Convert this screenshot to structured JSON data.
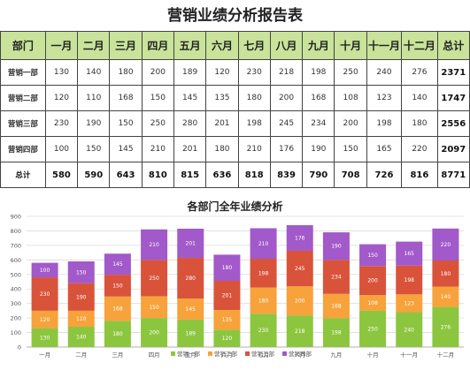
{
  "title": "营销业绩分析报告表",
  "table": {
    "headers": [
      "部门",
      "一月",
      "二月",
      "三月",
      "四月",
      "五月",
      "六月",
      "七月",
      "八月",
      "九月",
      "十月",
      "十一月",
      "十二月",
      "总计"
    ],
    "rows": [
      {
        "dept": "营销一部",
        "values": [
          "130",
          "140",
          "180",
          "200",
          "189",
          "120",
          "230",
          "218",
          "198",
          "250",
          "240",
          "276"
        ],
        "total": "2371"
      },
      {
        "dept": "营销二部",
        "values": [
          "120",
          "110",
          "168",
          "150",
          "145",
          "135",
          "180",
          "200",
          "168",
          "108",
          "123",
          "140"
        ],
        "total": "1747"
      },
      {
        "dept": "营销三部",
        "values": [
          "230",
          "190",
          "150",
          "250",
          "280",
          "201",
          "198",
          "245",
          "234",
          "200",
          "198",
          "180"
        ],
        "total": "2556"
      },
      {
        "dept": "营销四部",
        "values": [
          "100",
          "150",
          "145",
          "210",
          "201",
          "180",
          "210",
          "176",
          "190",
          "150",
          "165",
          "220"
        ],
        "total": "2097"
      }
    ],
    "sum_row": {
      "label": "总计",
      "values": [
        "580",
        "590",
        "643",
        "810",
        "815",
        "636",
        "818",
        "839",
        "790",
        "708",
        "726",
        "816"
      ],
      "total": "8771"
    }
  },
  "chart_data": {
    "type": "bar",
    "stacked": true,
    "title": "各部门全年业绩分析",
    "categories": [
      "一月",
      "二月",
      "三月",
      "四月",
      "五月",
      "六月",
      "七月",
      "八月",
      "九月",
      "十月",
      "十一月",
      "十二月"
    ],
    "series": [
      {
        "name": "营销一部",
        "color": "#8cc63f",
        "values": [
          130,
          140,
          180,
          200,
          189,
          120,
          230,
          218,
          198,
          250,
          240,
          276
        ]
      },
      {
        "name": "营销二部",
        "color": "#f7a23b",
        "values": [
          120,
          110,
          168,
          150,
          145,
          135,
          180,
          200,
          168,
          108,
          123,
          140
        ]
      },
      {
        "name": "营销三部",
        "color": "#d9533a",
        "values": [
          230,
          190,
          150,
          250,
          280,
          201,
          198,
          245,
          234,
          200,
          198,
          180
        ]
      },
      {
        "name": "营销四部",
        "color": "#a259c9",
        "values": [
          100,
          150,
          145,
          210,
          201,
          180,
          210,
          176,
          190,
          150,
          165,
          220
        ]
      }
    ],
    "ylim": [
      0,
      900
    ],
    "yticks": [
      0,
      100,
      200,
      300,
      400,
      500,
      600,
      700,
      800,
      900
    ],
    "grid": true,
    "legend": "bottom"
  }
}
